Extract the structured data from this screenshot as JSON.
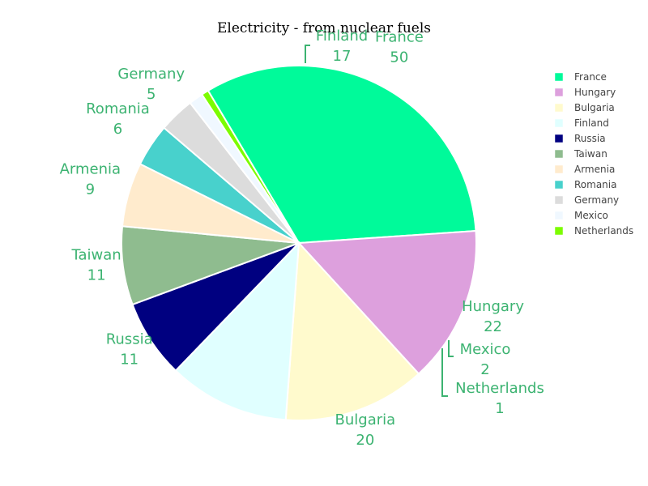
{
  "chart_data": {
    "type": "pie",
    "title": "Electricity - from nuclear fuels",
    "legend_position": "right",
    "label_color": "#3cb371",
    "slices": [
      {
        "label": "France",
        "value": 50,
        "color": "#00fa9a"
      },
      {
        "label": "Hungary",
        "value": 22,
        "color": "#dda0dd"
      },
      {
        "label": "Bulgaria",
        "value": 20,
        "color": "#fffacd"
      },
      {
        "label": "Finland",
        "value": 17,
        "color": "#e0ffff"
      },
      {
        "label": "Russia",
        "value": 11,
        "color": "#000080"
      },
      {
        "label": "Taiwan",
        "value": 11,
        "color": "#8fbc8f"
      },
      {
        "label": "Armenia",
        "value": 9,
        "color": "#ffebcd"
      },
      {
        "label": "Romania",
        "value": 6,
        "color": "#48d1cc"
      },
      {
        "label": "Germany",
        "value": 5,
        "color": "#dcdcdc"
      },
      {
        "label": "Mexico",
        "value": 2,
        "color": "#f0f8ff"
      },
      {
        "label": "Netherlands",
        "value": 1,
        "color": "#7cfc00"
      }
    ]
  }
}
